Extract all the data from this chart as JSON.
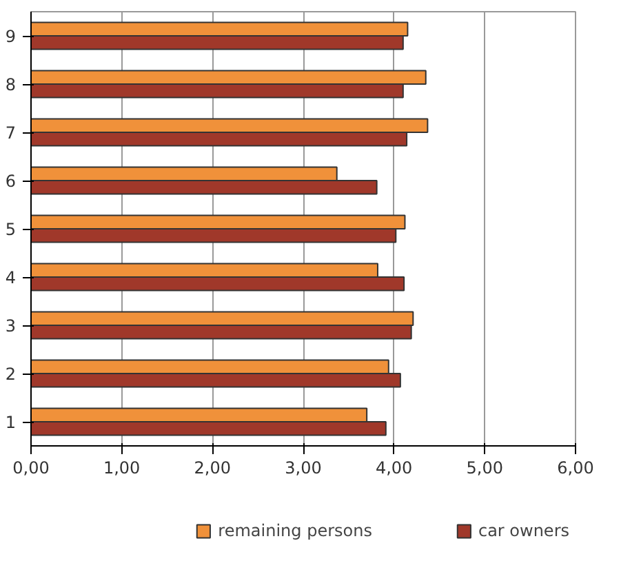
{
  "chart_data": {
    "type": "bar",
    "orientation": "horizontal",
    "categories": [
      "9",
      "8",
      "7",
      "6",
      "5",
      "4",
      "3",
      "2",
      "1"
    ],
    "series": [
      {
        "name": "remaining persons",
        "color": "#f0913a",
        "values": [
          4.15,
          4.35,
          4.37,
          3.37,
          4.12,
          3.82,
          4.21,
          3.94,
          3.7
        ]
      },
      {
        "name": "car owners",
        "color": "#a0382a",
        "values": [
          4.1,
          4.1,
          4.14,
          3.81,
          4.02,
          4.11,
          4.19,
          4.07,
          3.91
        ]
      }
    ],
    "xlim": [
      0,
      6
    ],
    "xticks": [
      {
        "value": 0,
        "label": "0,00"
      },
      {
        "value": 1,
        "label": "1,00"
      },
      {
        "value": 2,
        "label": "2,00"
      },
      {
        "value": 3,
        "label": "3,00"
      },
      {
        "value": 4,
        "label": "4,00"
      },
      {
        "value": 5,
        "label": "5,00"
      },
      {
        "value": 6,
        "label": "6,00"
      }
    ],
    "grid": "x",
    "legend": "bottom"
  }
}
